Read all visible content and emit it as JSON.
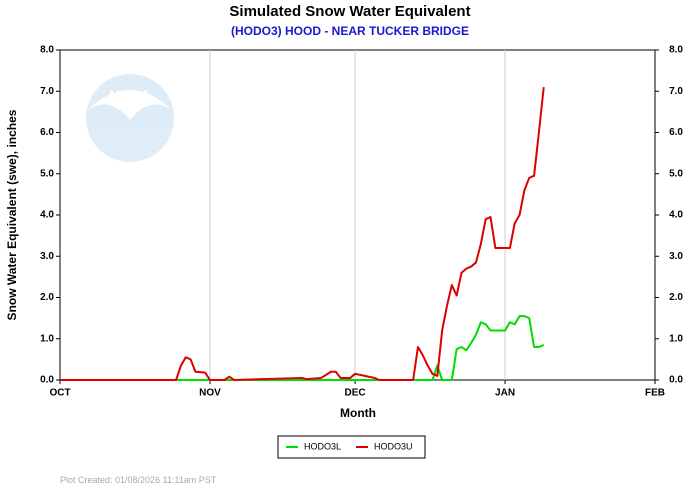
{
  "chart_data": {
    "type": "line",
    "title": "Simulated Snow Water Equivalent",
    "subtitle": "(HODO3) HOOD - NEAR TUCKER BRIDGE",
    "x_label": "Month",
    "y_label": "Snow Water Equivalent (swe),  inches",
    "footer": "Plot Created: 01/08/2026 11:11am PST",
    "x": [
      0,
      24,
      25,
      26,
      27,
      28,
      30,
      31,
      34,
      35,
      36,
      50,
      51,
      54,
      56,
      57,
      58,
      60,
      61,
      63,
      65,
      66,
      73,
      74,
      75,
      76,
      77,
      78,
      79,
      80,
      81,
      82,
      83,
      84,
      85,
      86,
      87,
      88,
      89,
      90,
      91,
      92,
      93,
      94,
      95,
      96,
      97,
      98,
      99,
      100
    ],
    "series": [
      {
        "name": "HODO3L",
        "color": "#00dd00",
        "values": [
          null,
          0,
          0,
          0,
          0,
          0,
          0,
          0,
          0,
          0,
          0,
          0,
          0,
          0,
          0,
          0,
          0,
          0,
          0,
          0,
          0,
          0,
          0,
          0,
          0,
          0,
          0,
          0.35,
          0,
          0,
          0,
          0.75,
          0.8,
          0.72,
          0.9,
          1.1,
          1.4,
          1.35,
          1.2,
          1.2,
          1.2,
          1.2,
          1.4,
          1.35,
          1.55,
          1.55,
          1.5,
          0.8,
          0.8,
          0.85
        ]
      },
      {
        "name": "HODO3U",
        "color": "#dd0000",
        "values": [
          0,
          0,
          0.35,
          0.55,
          0.5,
          0.2,
          0.18,
          0,
          0,
          0.08,
          0,
          0.05,
          0.02,
          0.05,
          0.2,
          0.2,
          0.05,
          0.05,
          0.15,
          0.1,
          0.05,
          0,
          0,
          0.8,
          0.6,
          0.35,
          0.15,
          0.1,
          1.2,
          1.8,
          2.3,
          2.05,
          2.6,
          2.7,
          2.75,
          2.85,
          3.3,
          3.9,
          3.95,
          3.2,
          3.2,
          3.2,
          3.2,
          3.8,
          4.0,
          4.6,
          4.9,
          4.95,
          6.0,
          7.1
        ]
      }
    ],
    "xlim": [
      0,
      123
    ],
    "xticks": [
      {
        "value": 0,
        "label": "OCT"
      },
      {
        "value": 31,
        "label": "NOV"
      },
      {
        "value": 61,
        "label": "DEC"
      },
      {
        "value": 92,
        "label": "JAN"
      },
      {
        "value": 123,
        "label": "FEB"
      }
    ],
    "ylim": [
      0,
      8
    ],
    "yticks": [
      {
        "value": 0,
        "label": "0.0"
      },
      {
        "value": 1,
        "label": "1.0"
      },
      {
        "value": 2,
        "label": "2.0"
      },
      {
        "value": 3,
        "label": "3.0"
      },
      {
        "value": 4,
        "label": "4.0"
      },
      {
        "value": 5,
        "label": "5.0"
      },
      {
        "value": 6,
        "label": "6.0"
      },
      {
        "value": 7,
        "label": "7.0"
      },
      {
        "value": 8,
        "label": "8.0"
      }
    ],
    "grid": "x"
  }
}
